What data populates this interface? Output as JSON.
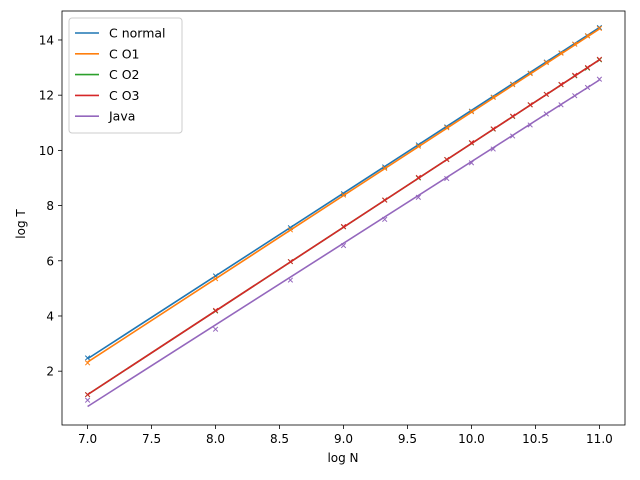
{
  "chart_data": {
    "type": "line",
    "title": "",
    "xlabel": "log N",
    "ylabel": "log T",
    "xlim": [
      6.8,
      11.2
    ],
    "ylim": [
      0.05,
      15.05
    ],
    "x_ticks": [
      7.0,
      7.5,
      8.0,
      8.5,
      9.0,
      9.5,
      10.0,
      10.5,
      11.0
    ],
    "x_tick_labels": [
      "7.0",
      "7.5",
      "8.0",
      "8.5",
      "9.0",
      "9.5",
      "10.0",
      "10.5",
      "11.0"
    ],
    "y_ticks": [
      2,
      4,
      6,
      8,
      10,
      12,
      14
    ],
    "y_tick_labels": [
      "2",
      "4",
      "6",
      "8",
      "10",
      "12",
      "14"
    ],
    "grid": false,
    "legend_position": "top-left",
    "series": [
      {
        "name": "C normal",
        "color": "#1f77b4",
        "line": [
          [
            7.0,
            2.45
          ],
          [
            11.0,
            14.45
          ]
        ],
        "points": [
          [
            7.0,
            2.48
          ],
          [
            8.0,
            5.45
          ],
          [
            8.585,
            7.2
          ],
          [
            9.0,
            8.43
          ],
          [
            9.322,
            9.4
          ],
          [
            9.585,
            10.2
          ],
          [
            9.807,
            10.85
          ],
          [
            10.0,
            11.42
          ],
          [
            10.17,
            11.93
          ],
          [
            10.322,
            12.4
          ],
          [
            10.459,
            12.8
          ],
          [
            10.585,
            13.2
          ],
          [
            10.7,
            13.53
          ],
          [
            10.807,
            13.85
          ],
          [
            10.907,
            14.15
          ],
          [
            11.0,
            14.45
          ]
        ]
      },
      {
        "name": "C O1",
        "color": "#ff7f0e",
        "line": [
          [
            7.0,
            2.33
          ],
          [
            11.0,
            14.4
          ]
        ],
        "points": [
          [
            7.0,
            2.3
          ],
          [
            8.0,
            5.35
          ],
          [
            8.585,
            7.12
          ],
          [
            9.0,
            8.38
          ],
          [
            9.322,
            9.35
          ],
          [
            9.585,
            10.15
          ],
          [
            9.807,
            10.82
          ],
          [
            10.0,
            11.4
          ],
          [
            10.17,
            11.92
          ],
          [
            10.322,
            12.38
          ],
          [
            10.459,
            12.78
          ],
          [
            10.585,
            13.18
          ],
          [
            10.7,
            13.52
          ],
          [
            10.807,
            13.85
          ],
          [
            10.907,
            14.15
          ],
          [
            11.0,
            14.42
          ]
        ]
      },
      {
        "name": "C O2",
        "color": "#2ca02c",
        "line": [
          [
            7.0,
            1.15
          ],
          [
            11.0,
            13.28
          ]
        ],
        "points": [
          [
            7.0,
            1.15
          ],
          [
            8.0,
            4.18
          ],
          [
            8.585,
            5.97
          ],
          [
            9.0,
            7.23
          ],
          [
            9.322,
            8.2
          ],
          [
            9.585,
            9.0
          ],
          [
            9.807,
            9.67
          ],
          [
            10.0,
            10.27
          ],
          [
            10.17,
            10.77
          ],
          [
            10.322,
            11.23
          ],
          [
            10.459,
            11.65
          ],
          [
            10.585,
            12.03
          ],
          [
            10.7,
            12.38
          ],
          [
            10.807,
            12.7
          ],
          [
            10.907,
            12.98
          ],
          [
            11.0,
            13.28
          ]
        ]
      },
      {
        "name": "C O3",
        "color": "#d62728",
        "line": [
          [
            7.0,
            1.15
          ],
          [
            11.0,
            13.28
          ]
        ],
        "points": [
          [
            7.0,
            1.15
          ],
          [
            8.0,
            4.2
          ],
          [
            8.585,
            5.97
          ],
          [
            9.0,
            7.24
          ],
          [
            9.322,
            8.2
          ],
          [
            9.585,
            9.02
          ],
          [
            9.807,
            9.67
          ],
          [
            10.0,
            10.28
          ],
          [
            10.17,
            10.78
          ],
          [
            10.322,
            11.24
          ],
          [
            10.459,
            11.65
          ],
          [
            10.585,
            12.03
          ],
          [
            10.7,
            12.39
          ],
          [
            10.807,
            12.72
          ],
          [
            10.907,
            13.0
          ],
          [
            11.0,
            13.3
          ]
        ]
      },
      {
        "name": "Java",
        "color": "#9467bd",
        "line": [
          [
            7.0,
            0.72
          ],
          [
            11.0,
            12.55
          ]
        ],
        "points": [
          [
            7.0,
            0.95
          ],
          [
            8.0,
            3.52
          ],
          [
            8.585,
            5.3
          ],
          [
            9.0,
            6.55
          ],
          [
            9.322,
            7.5
          ],
          [
            9.585,
            8.3
          ],
          [
            9.807,
            8.98
          ],
          [
            10.0,
            9.55
          ],
          [
            10.17,
            10.05
          ],
          [
            10.322,
            10.52
          ],
          [
            10.459,
            10.92
          ],
          [
            10.585,
            11.32
          ],
          [
            10.7,
            11.65
          ],
          [
            10.807,
            11.98
          ],
          [
            10.907,
            12.28
          ],
          [
            11.0,
            12.58
          ]
        ]
      }
    ]
  }
}
